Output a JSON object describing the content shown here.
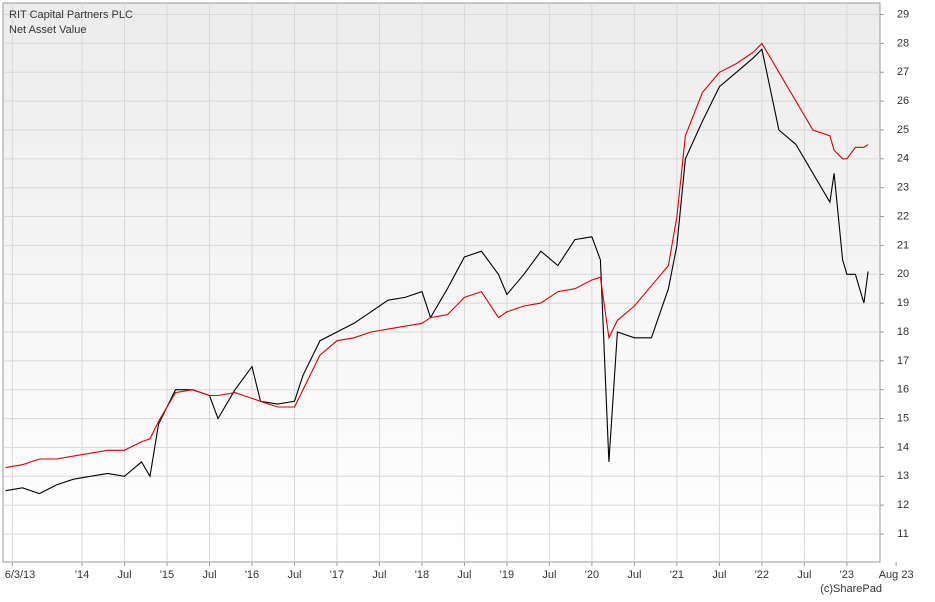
{
  "chart_data": {
    "type": "line",
    "watermark": "(c)SharePad",
    "x": [
      2013.1,
      2013.3,
      2013.5,
      2013.7,
      2013.9,
      2014.1,
      2014.3,
      2014.5,
      2014.7,
      2014.8,
      2014.9,
      2015.1,
      2015.3,
      2015.5,
      2015.6,
      2015.8,
      2016.0,
      2016.1,
      2016.3,
      2016.5,
      2016.6,
      2016.8,
      2017.0,
      2017.2,
      2017.4,
      2017.6,
      2017.8,
      2018.0,
      2018.1,
      2018.3,
      2018.5,
      2018.7,
      2018.9,
      2019.0,
      2019.2,
      2019.4,
      2019.6,
      2019.8,
      2020.0,
      2020.1,
      2020.2,
      2020.3,
      2020.5,
      2020.7,
      2020.9,
      2021.0,
      2021.1,
      2021.3,
      2021.5,
      2021.7,
      2021.9,
      2022.0,
      2022.2,
      2022.4,
      2022.6,
      2022.8,
      2022.85,
      2022.95,
      2023.0,
      2023.1,
      2023.2,
      2023.25
    ],
    "series": [
      {
        "name": "RIT Capital Partners PLC",
        "color": "#000000",
        "values": [
          12.5,
          12.6,
          12.4,
          12.7,
          12.9,
          13.0,
          13.1,
          13.0,
          13.5,
          13.0,
          14.8,
          16.0,
          16.0,
          15.8,
          15.0,
          16.0,
          16.8,
          15.6,
          15.5,
          15.6,
          16.5,
          17.7,
          18.0,
          18.3,
          18.7,
          19.1,
          19.2,
          19.4,
          18.5,
          19.5,
          20.6,
          20.8,
          20.0,
          19.3,
          20.0,
          20.8,
          20.3,
          21.2,
          21.3,
          20.5,
          13.5,
          18.0,
          17.8,
          17.8,
          19.5,
          21.0,
          24.0,
          25.3,
          26.5,
          27.0,
          27.5,
          27.8,
          25.0,
          24.5,
          23.5,
          22.5,
          23.5,
          20.5,
          20.0,
          20.0,
          19.0,
          20.1
        ]
      },
      {
        "name": "Net Asset Value",
        "color": "#dd0000",
        "values": [
          13.3,
          13.4,
          13.6,
          13.6,
          13.7,
          13.8,
          13.9,
          13.9,
          14.2,
          14.3,
          14.9,
          15.9,
          16.0,
          15.8,
          15.8,
          15.9,
          15.7,
          15.6,
          15.4,
          15.4,
          16.0,
          17.2,
          17.7,
          17.8,
          18.0,
          18.1,
          18.2,
          18.3,
          18.5,
          18.6,
          19.2,
          19.4,
          18.5,
          18.7,
          18.9,
          19.0,
          19.4,
          19.5,
          19.8,
          19.9,
          17.8,
          18.4,
          18.9,
          19.6,
          20.3,
          22.0,
          24.8,
          26.3,
          27.0,
          27.3,
          27.7,
          28.0,
          27.0,
          26.0,
          25.0,
          24.8,
          24.3,
          24.0,
          24.0,
          24.4,
          24.4,
          24.5
        ]
      }
    ],
    "xlim": [
      2013.07,
      2023.39
    ],
    "xticks": [
      {
        "value": 2013.18,
        "label": "6/3/13"
      },
      {
        "value": 2014,
        "label": "'14"
      },
      {
        "value": 2014.5,
        "label": "Jul"
      },
      {
        "value": 2015,
        "label": "'15"
      },
      {
        "value": 2015.5,
        "label": "Jul"
      },
      {
        "value": 2016,
        "label": "'16"
      },
      {
        "value": 2016.5,
        "label": "Jul"
      },
      {
        "value": 2017,
        "label": "'17"
      },
      {
        "value": 2017.5,
        "label": "Jul"
      },
      {
        "value": 2018,
        "label": "'18"
      },
      {
        "value": 2018.5,
        "label": "Jul"
      },
      {
        "value": 2019,
        "label": "'19"
      },
      {
        "value": 2019.5,
        "label": "Jul"
      },
      {
        "value": 2020,
        "label": "'20"
      },
      {
        "value": 2020.5,
        "label": "Jul"
      },
      {
        "value": 2021,
        "label": "'21"
      },
      {
        "value": 2021.5,
        "label": "Jul"
      },
      {
        "value": 2022,
        "label": "'22"
      },
      {
        "value": 2022.5,
        "label": "Jul"
      },
      {
        "value": 2023,
        "label": "'23"
      },
      {
        "value": 2023.58,
        "label": "Aug 23"
      }
    ],
    "ylim": [
      10.03,
      29.4
    ],
    "yticks": [
      11,
      12,
      13,
      14,
      15,
      16,
      17,
      18,
      19,
      20,
      21,
      22,
      23,
      24,
      25,
      26,
      27,
      28,
      29
    ],
    "grid": true
  }
}
